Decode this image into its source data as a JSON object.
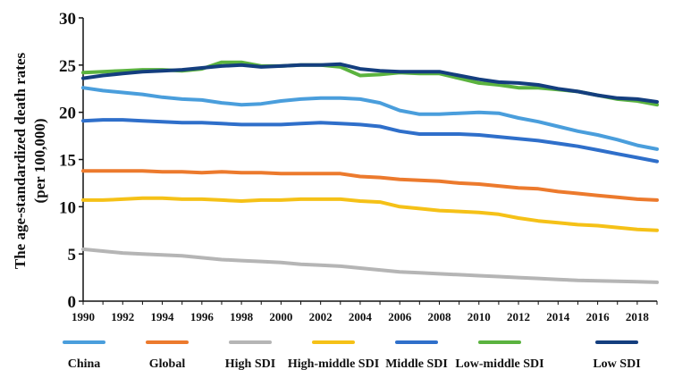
{
  "chart_data": {
    "type": "line",
    "title": "",
    "xlabel": "",
    "ylabel_line1": "The age-standardized death rates",
    "ylabel_line2": "(per 100,000)",
    "ylim": [
      0,
      30
    ],
    "yticks": [
      "0",
      "5",
      "10",
      "15",
      "20",
      "25",
      "30"
    ],
    "xlim": [
      1990,
      2019
    ],
    "xticks": [
      "1990",
      "1992",
      "1994",
      "1996",
      "1998",
      "2000",
      "2002",
      "2004",
      "2006",
      "2008",
      "2010",
      "2012",
      "2014",
      "2016",
      "2018"
    ],
    "grid": false,
    "legend_position": "bottom",
    "x": [
      1990,
      1991,
      1992,
      1993,
      1994,
      1995,
      1996,
      1997,
      1998,
      1999,
      2000,
      2001,
      2002,
      2003,
      2004,
      2005,
      2006,
      2007,
      2008,
      2009,
      2010,
      2011,
      2012,
      2013,
      2014,
      2015,
      2016,
      2017,
      2018,
      2019
    ],
    "series": [
      {
        "name": "China",
        "color": "#4a9edc",
        "values": [
          22.6,
          22.3,
          22.1,
          21.9,
          21.6,
          21.4,
          21.3,
          21.0,
          20.8,
          20.9,
          21.2,
          21.4,
          21.5,
          21.5,
          21.4,
          21.0,
          20.2,
          19.8,
          19.8,
          19.9,
          20.0,
          19.9,
          19.4,
          19.0,
          18.5,
          18.0,
          17.6,
          17.1,
          16.5,
          16.1
        ]
      },
      {
        "name": "Global",
        "color": "#ec7a2d",
        "values": [
          13.8,
          13.8,
          13.8,
          13.8,
          13.7,
          13.7,
          13.6,
          13.7,
          13.6,
          13.6,
          13.5,
          13.5,
          13.5,
          13.5,
          13.2,
          13.1,
          12.9,
          12.8,
          12.7,
          12.5,
          12.4,
          12.2,
          12.0,
          11.9,
          11.6,
          11.4,
          11.2,
          11.0,
          10.8,
          10.7
        ]
      },
      {
        "name": "High SDI",
        "color": "#b5b5b5",
        "values": [
          5.5,
          5.3,
          5.1,
          5.0,
          4.9,
          4.8,
          4.6,
          4.4,
          4.3,
          4.2,
          4.1,
          3.9,
          3.8,
          3.7,
          3.5,
          3.3,
          3.1,
          3.0,
          2.9,
          2.8,
          2.7,
          2.6,
          2.5,
          2.4,
          2.3,
          2.2,
          2.15,
          2.1,
          2.05,
          2.0
        ]
      },
      {
        "name": "High-middle SDI",
        "color": "#f5c117",
        "values": [
          10.7,
          10.7,
          10.8,
          10.9,
          10.9,
          10.8,
          10.8,
          10.7,
          10.6,
          10.7,
          10.7,
          10.8,
          10.8,
          10.8,
          10.6,
          10.5,
          10.0,
          9.8,
          9.6,
          9.5,
          9.4,
          9.2,
          8.8,
          8.5,
          8.3,
          8.1,
          8.0,
          7.8,
          7.6,
          7.5
        ]
      },
      {
        "name": "Middle SDI",
        "color": "#2f6fca",
        "values": [
          19.1,
          19.2,
          19.2,
          19.1,
          19.0,
          18.9,
          18.9,
          18.8,
          18.7,
          18.7,
          18.7,
          18.8,
          18.9,
          18.8,
          18.7,
          18.5,
          18.0,
          17.7,
          17.7,
          17.7,
          17.6,
          17.4,
          17.2,
          17.0,
          16.7,
          16.4,
          16.0,
          15.6,
          15.2,
          14.8
        ]
      },
      {
        "name": "Low-middle SDI",
        "color": "#5bb33f",
        "values": [
          24.2,
          24.3,
          24.4,
          24.5,
          24.5,
          24.4,
          24.6,
          25.3,
          25.3,
          24.9,
          24.9,
          25.0,
          25.0,
          24.8,
          23.9,
          24.0,
          24.2,
          24.1,
          24.1,
          23.6,
          23.1,
          22.9,
          22.6,
          22.6,
          22.4,
          22.2,
          21.8,
          21.4,
          21.2,
          20.8
        ]
      },
      {
        "name": "Low SDI",
        "color": "#143e7e",
        "values": [
          23.6,
          23.9,
          24.1,
          24.3,
          24.4,
          24.5,
          24.7,
          24.9,
          25.0,
          24.8,
          24.9,
          25.0,
          25.0,
          25.1,
          24.6,
          24.4,
          24.3,
          24.3,
          24.3,
          23.9,
          23.5,
          23.2,
          23.1,
          22.9,
          22.5,
          22.2,
          21.8,
          21.5,
          21.4,
          21.1
        ]
      }
    ]
  }
}
